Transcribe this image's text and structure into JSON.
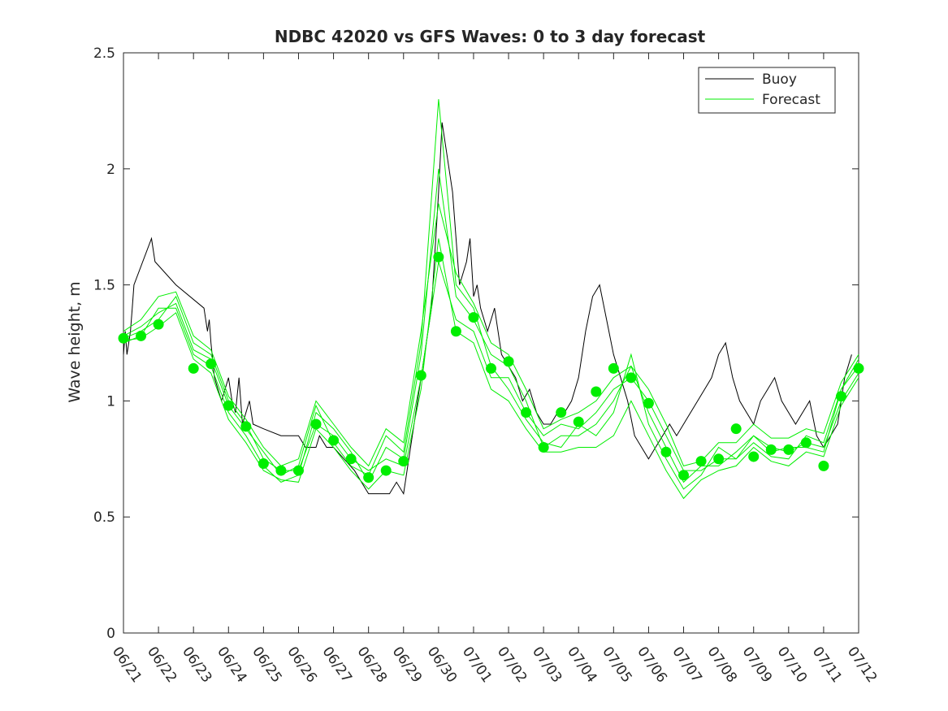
{
  "chart_data": {
    "type": "line",
    "title": "NDBC 42020 vs GFS Waves: 0 to 3 day forecast",
    "xlabel": "",
    "ylabel": "Wave height, m",
    "xlim": [
      "06/21",
      "07/12"
    ],
    "ylim": [
      0,
      2.5
    ],
    "yticks": [
      0,
      0.5,
      1,
      1.5,
      2,
      2.5
    ],
    "ytick_labels": [
      "0",
      "0.5",
      "1",
      "1.5",
      "2",
      "2.5"
    ],
    "xtick_labels": [
      "06/21",
      "06/22",
      "06/23",
      "06/24",
      "06/25",
      "06/26",
      "06/27",
      "06/28",
      "06/29",
      "06/30",
      "07/01",
      "07/02",
      "07/03",
      "07/04",
      "07/05",
      "07/06",
      "07/07",
      "07/08",
      "07/09",
      "07/10",
      "07/11",
      "07/12"
    ],
    "grid": false,
    "legend_position": "top-right",
    "colors": {
      "buoy": "#000000",
      "forecast": "#00ee00",
      "axes": "#262626"
    },
    "series": [
      {
        "name": "Buoy",
        "x": [
          0,
          0.05,
          0.1,
          0.2,
          0.25,
          0.3,
          0.8,
          0.9,
          1.5,
          2.3,
          2.4,
          2.45,
          2.5,
          2.6,
          2.8,
          2.9,
          3.0,
          3.1,
          3.2,
          3.3,
          3.4,
          3.5,
          3.6,
          3.7,
          4.0,
          4.5,
          5.0,
          5.2,
          5.5,
          5.6,
          5.8,
          6.0,
          6.3,
          6.6,
          6.8,
          7.0,
          7.6,
          7.8,
          8.0,
          8.2,
          8.5,
          8.8,
          9.0,
          9.1,
          9.2,
          9.4,
          9.6,
          9.8,
          9.9,
          10.0,
          10.1,
          10.2,
          10.4,
          10.6,
          10.8,
          11.0,
          11.2,
          11.4,
          11.6,
          11.8,
          12.0,
          12.2,
          12.4,
          12.6,
          12.8,
          13.0,
          13.2,
          13.4,
          13.6,
          13.8,
          14.0,
          14.2,
          14.4,
          14.6,
          14.8,
          15.0,
          15.2,
          15.4,
          15.6,
          15.8,
          16.0,
          16.2,
          16.4,
          16.6,
          16.8,
          17.0,
          17.2,
          17.4,
          17.6,
          17.8,
          18.0,
          18.2,
          18.4,
          18.6,
          18.8,
          19.0,
          19.2,
          19.4,
          19.6,
          19.8,
          20.0,
          20.2,
          20.4,
          20.6,
          20.8
        ],
        "y": [
          1.2,
          1.3,
          1.2,
          1.3,
          1.4,
          1.5,
          1.7,
          1.6,
          1.5,
          1.4,
          1.3,
          1.35,
          1.25,
          1.1,
          1.0,
          1.05,
          1.1,
          1.0,
          0.95,
          1.1,
          0.9,
          0.95,
          1.0,
          0.9,
          0.88,
          0.85,
          0.85,
          0.8,
          0.8,
          0.85,
          0.8,
          0.8,
          0.75,
          0.7,
          0.65,
          0.6,
          0.6,
          0.65,
          0.6,
          0.8,
          1.1,
          1.4,
          1.9,
          2.2,
          2.1,
          1.9,
          1.5,
          1.6,
          1.7,
          1.45,
          1.5,
          1.4,
          1.3,
          1.4,
          1.2,
          1.15,
          1.1,
          1.0,
          1.05,
          0.95,
          0.9,
          0.9,
          0.95,
          0.95,
          1.0,
          1.1,
          1.3,
          1.45,
          1.5,
          1.35,
          1.2,
          1.1,
          1.0,
          0.85,
          0.8,
          0.75,
          0.8,
          0.85,
          0.9,
          0.85,
          0.9,
          0.95,
          1.0,
          1.05,
          1.1,
          1.2,
          1.25,
          1.1,
          1.0,
          0.95,
          0.9,
          1.0,
          1.05,
          1.1,
          1.0,
          0.95,
          0.9,
          0.95,
          1.0,
          0.85,
          0.8,
          0.85,
          0.9,
          1.1,
          1.2
        ]
      },
      {
        "name": "Forecast",
        "x": [
          0,
          0.5,
          1.0,
          1.5,
          2.0,
          2.5,
          3.0,
          3.5,
          4.0,
          4.5,
          5.0,
          5.5,
          6.0,
          6.5,
          7.0,
          7.5,
          8.0,
          8.5,
          9.0,
          9.5,
          10.0,
          10.5,
          11.0,
          11.5,
          12.0,
          12.5,
          13.0,
          13.5,
          14.0,
          14.5,
          15.0,
          15.5,
          16.0,
          16.5,
          17.0,
          17.5,
          18.0,
          18.5,
          19.0,
          19.5,
          20.0,
          20.5,
          21.0
        ],
        "y": [
          1.27,
          1.3,
          1.35,
          1.45,
          1.25,
          1.2,
          1.0,
          0.9,
          0.75,
          0.7,
          0.7,
          0.9,
          0.85,
          0.75,
          0.7,
          0.75,
          0.72,
          1.1,
          1.6,
          1.35,
          1.3,
          1.1,
          1.1,
          0.95,
          0.85,
          0.9,
          0.88,
          0.95,
          1.05,
          1.1,
          1.0,
          0.85,
          0.7,
          0.7,
          0.75,
          0.75,
          0.85,
          0.78,
          0.8,
          0.8,
          0.78,
          1.05,
          1.15
        ]
      },
      {
        "name": "",
        "x": [
          0,
          0.5,
          1.0,
          1.5,
          2.0,
          2.5,
          3.0,
          3.5,
          4.0,
          4.5,
          5.0,
          5.5,
          6.0,
          6.5,
          7.0,
          7.5,
          8.0,
          8.5,
          9.0,
          9.5,
          10.0,
          10.5,
          11.0,
          11.5,
          12.0,
          12.5,
          13.0,
          13.5,
          14.0,
          14.5,
          15.0,
          15.5,
          16.0,
          16.5,
          17.0,
          17.5,
          18.0,
          18.5,
          19.0,
          19.5,
          20.0,
          20.5,
          21.0
        ],
        "y": [
          1.25,
          1.28,
          1.4,
          1.4,
          1.2,
          1.15,
          0.95,
          0.85,
          0.72,
          0.65,
          0.68,
          0.95,
          0.88,
          0.78,
          0.65,
          0.8,
          0.75,
          1.2,
          2.0,
          1.45,
          1.35,
          1.2,
          1.15,
          1.0,
          0.8,
          0.85,
          0.85,
          0.9,
          1.0,
          1.15,
          0.95,
          0.8,
          0.65,
          0.72,
          0.72,
          0.78,
          0.85,
          0.8,
          0.78,
          0.82,
          0.8,
          1.0,
          1.12
        ]
      },
      {
        "name": "",
        "x": [
          0,
          0.5,
          1.0,
          1.5,
          2.0,
          2.5,
          3.0,
          3.5,
          4.0,
          4.5,
          5.0,
          5.5,
          6.0,
          6.5,
          7.0,
          7.5,
          8.0,
          8.5,
          9.0,
          9.5,
          10.0,
          10.5,
          11.0,
          11.5,
          12.0,
          12.5,
          13.0,
          13.5,
          14.0,
          14.5,
          15.0,
          15.5,
          16.0,
          16.5,
          17.0,
          17.5,
          18.0,
          18.5,
          19.0,
          19.5,
          20.0,
          20.5,
          21.0
        ],
        "y": [
          1.28,
          1.32,
          1.38,
          1.42,
          1.22,
          1.18,
          0.98,
          0.88,
          0.78,
          0.68,
          0.72,
          0.98,
          0.82,
          0.72,
          0.68,
          0.85,
          0.78,
          1.25,
          2.3,
          1.5,
          1.4,
          1.15,
          1.05,
          0.92,
          0.82,
          0.8,
          0.9,
          0.85,
          0.95,
          1.2,
          0.9,
          0.75,
          0.62,
          0.68,
          0.8,
          0.75,
          0.82,
          0.76,
          0.75,
          0.85,
          0.82,
          1.05,
          1.18
        ]
      },
      {
        "name": "",
        "x": [
          0,
          0.5,
          1.0,
          1.5,
          2.0,
          2.5,
          3.0,
          3.5,
          4.0,
          4.5,
          5.0,
          5.5,
          6.0,
          6.5,
          7.0,
          7.5,
          8.0,
          8.5,
          9.0,
          9.5,
          10.0,
          10.5,
          11.0,
          11.5,
          12.0,
          12.5,
          13.0,
          13.5,
          14.0,
          14.5,
          15.0,
          15.5,
          16.0,
          16.5,
          17.0,
          17.5,
          18.0,
          18.5,
          19.0,
          19.5,
          20.0,
          20.5,
          21.0
        ],
        "y": [
          1.26,
          1.27,
          1.32,
          1.38,
          1.18,
          1.12,
          0.92,
          0.82,
          0.7,
          0.66,
          0.65,
          0.88,
          0.8,
          0.7,
          0.62,
          0.7,
          0.68,
          1.05,
          1.7,
          1.3,
          1.25,
          1.05,
          1.0,
          0.88,
          0.78,
          0.78,
          0.8,
          0.8,
          0.85,
          1.0,
          0.85,
          0.7,
          0.58,
          0.66,
          0.7,
          0.72,
          0.8,
          0.74,
          0.72,
          0.78,
          0.76,
          0.98,
          1.1
        ]
      },
      {
        "name": "",
        "x": [
          0,
          0.5,
          1.0,
          1.5,
          2.0,
          2.5,
          3.0,
          3.5,
          4.0,
          4.5,
          5.0,
          5.5,
          6.0,
          6.5,
          7.0,
          7.5,
          8.0,
          8.5,
          9.0,
          9.5,
          10.0,
          10.5,
          11.0,
          11.5,
          12.0,
          12.5,
          13.0,
          13.5,
          14.0,
          14.5,
          15.0,
          15.5,
          16.0,
          16.5,
          17.0,
          17.5,
          18.0,
          18.5,
          19.0,
          19.5,
          20.0,
          20.5,
          21.0
        ],
        "y": [
          1.3,
          1.35,
          1.45,
          1.47,
          1.28,
          1.22,
          1.02,
          0.92,
          0.8,
          0.72,
          0.75,
          1.0,
          0.9,
          0.8,
          0.72,
          0.88,
          0.82,
          1.3,
          1.85,
          1.55,
          1.42,
          1.25,
          1.2,
          1.05,
          0.88,
          0.92,
          0.95,
          1.0,
          1.1,
          1.15,
          1.05,
          0.9,
          0.72,
          0.74,
          0.82,
          0.82,
          0.9,
          0.84,
          0.84,
          0.88,
          0.86,
          1.08,
          1.2
        ]
      }
    ],
    "forecast_markers": {
      "x": [
        0,
        0.5,
        1.0,
        2.0,
        2.5,
        3.0,
        3.5,
        4.0,
        4.5,
        5.0,
        5.5,
        6.0,
        6.5,
        7.0,
        7.5,
        8.0,
        8.5,
        9.0,
        9.5,
        10.0,
        10.5,
        11.0,
        11.5,
        12.0,
        12.5,
        13.0,
        13.5,
        14.0,
        14.5,
        15.0,
        15.5,
        16.0,
        16.5,
        17.0,
        17.5,
        18.0,
        18.5,
        19.0,
        19.5,
        20.0,
        20.5,
        21.0
      ],
      "y": [
        1.27,
        1.28,
        1.33,
        1.14,
        1.16,
        0.98,
        0.89,
        0.73,
        0.7,
        0.7,
        0.9,
        0.83,
        0.75,
        0.67,
        0.7,
        0.74,
        1.11,
        1.62,
        1.3,
        1.36,
        1.14,
        1.17,
        0.95,
        0.8,
        0.95,
        0.91,
        1.04,
        1.14,
        1.1,
        0.99,
        0.78,
        0.68,
        0.74,
        0.75,
        0.88,
        0.76,
        0.79,
        0.79,
        0.82,
        0.72,
        1.02,
        1.14
      ]
    }
  }
}
